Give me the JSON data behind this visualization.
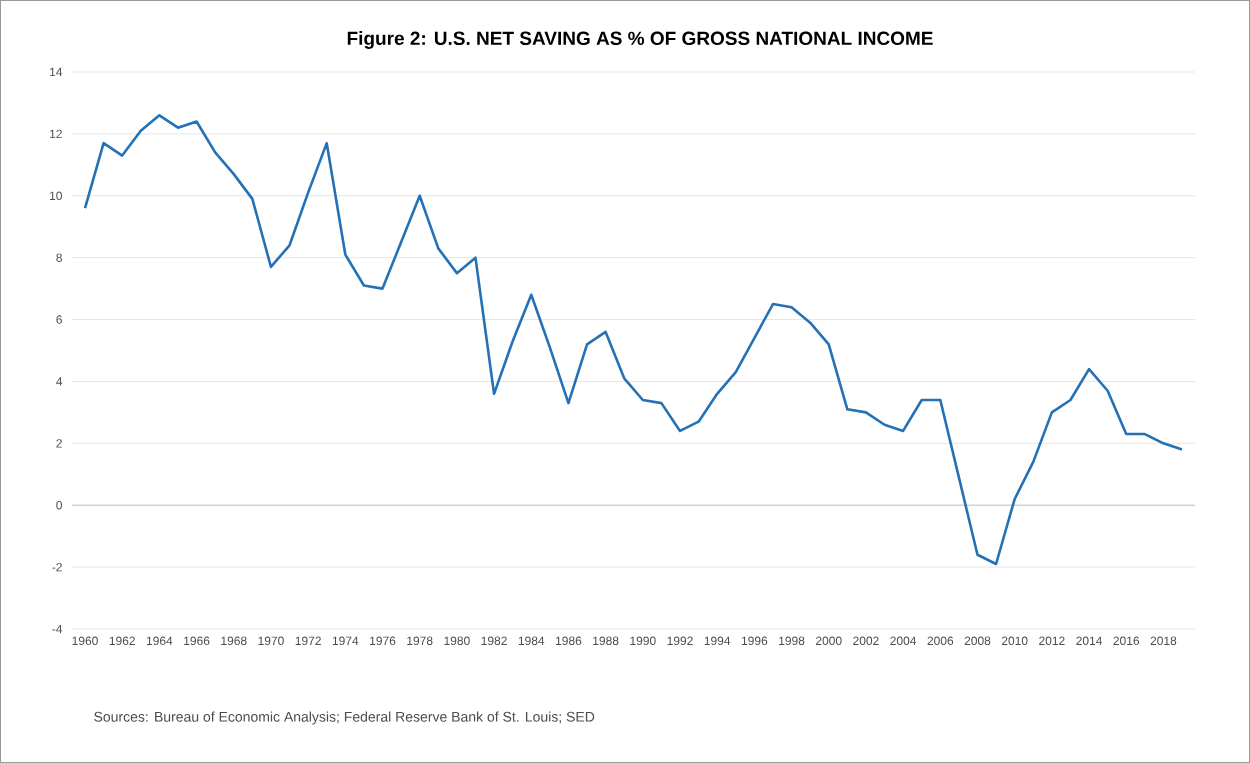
{
  "chart_data": {
    "type": "line",
    "title": "Figure 2: U.S. NET SAVING AS % OF GROSS NATIONAL INCOME",
    "categories": [
      "1960",
      null,
      "1962",
      null,
      "1964",
      null,
      "1966",
      null,
      "1968",
      null,
      "1970",
      null,
      "1972",
      null,
      "1974",
      null,
      "1976",
      null,
      "1978",
      null,
      "1980",
      null,
      "1982",
      null,
      "1984",
      null,
      "1986",
      null,
      "1988",
      null,
      "1990",
      null,
      "1992",
      null,
      "1994",
      null,
      "1996",
      null,
      "1998",
      null,
      "2000",
      null,
      "2002",
      null,
      "2004",
      null,
      "2006",
      null,
      "2008",
      null,
      "2010",
      null,
      "2012",
      null,
      "2014",
      null,
      "2016",
      null,
      "2018",
      null
    ],
    "values": [
      9.6,
      11.7,
      11.3,
      12.1,
      12.6,
      12.2,
      12.4,
      11.4,
      10.7,
      9.9,
      7.7,
      8.4,
      10.1,
      11.7,
      8.1,
      7.1,
      7.0,
      8.5,
      10.0,
      8.3,
      7.5,
      8.0,
      3.6,
      5.3,
      6.8,
      5.1,
      3.3,
      5.2,
      5.6,
      4.1,
      3.4,
      3.3,
      2.4,
      2.7,
      3.6,
      4.3,
      5.4,
      6.5,
      6.4,
      5.9,
      5.2,
      3.1,
      3.0,
      2.6,
      2.4,
      3.4,
      3.4,
      0.9,
      -1.6,
      -1.9,
      0.2,
      1.4,
      3.0,
      3.4,
      4.4,
      3.7,
      2.3,
      2.3,
      2.0,
      1.8
    ],
    "color": "#2471b5",
    "ylim": [
      -4,
      14
    ],
    "yticks": [
      -4,
      -2,
      0,
      2,
      4,
      6,
      8,
      10,
      12,
      14
    ],
    "grid": "y",
    "marker": "none",
    "line_style": "solid",
    "annotations": [
      "Sources:  Bureau of Economic Analysis; Federal Reserve Bank of St. Louis; SED"
    ]
  }
}
